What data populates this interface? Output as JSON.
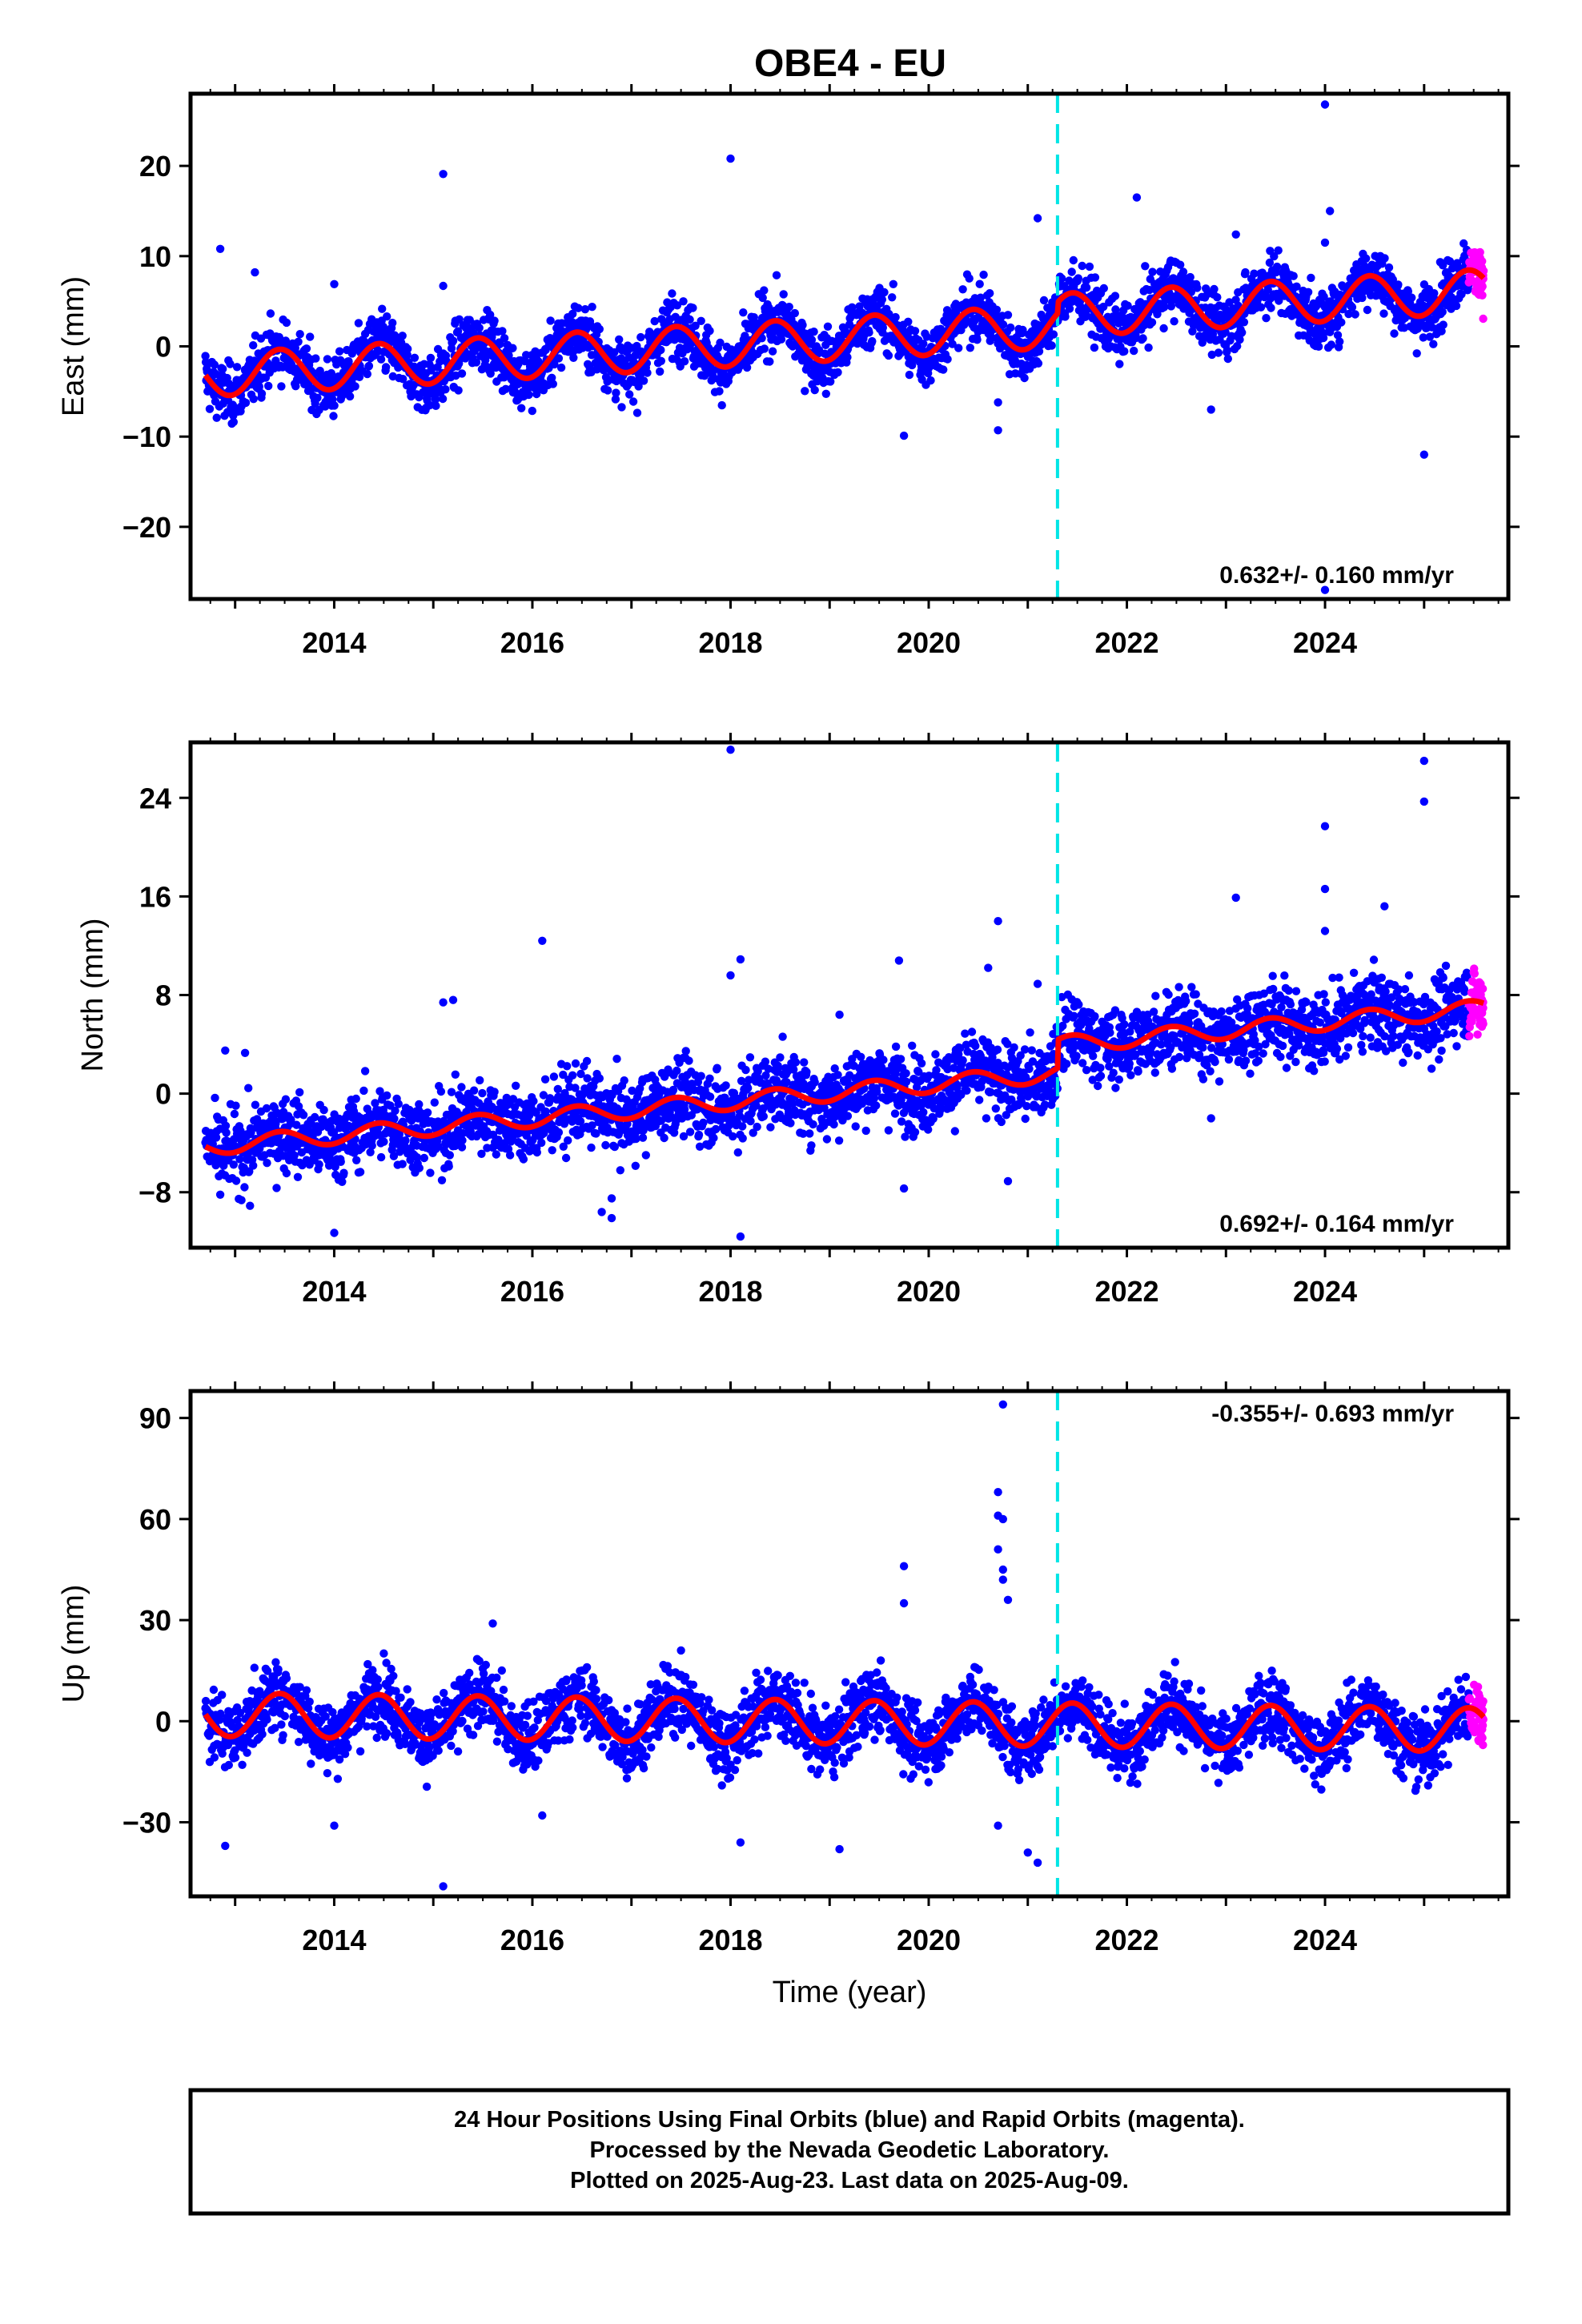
{
  "title": "OBE4 - EU",
  "caption": [
    "24 Hour Positions Using Final Orbits (blue) and Rapid Orbits (magenta).",
    "Processed by the Nevada Geodetic Laboratory.",
    "Plotted on 2025-Aug-23. Last data on 2025-Aug-09."
  ],
  "colors": {
    "final_orbits": "#0000ff",
    "rapid_orbits": "#ff00ff",
    "model_fit": "#ff0000",
    "equipment_change": "#00e5e5",
    "axes": "#000000"
  },
  "chart_data": [
    {
      "type": "scatter",
      "panel": "east",
      "title": "OBE4 - EU",
      "xlabel": "",
      "ylabel": "East (mm)",
      "xlim": [
        2012.55,
        2025.85
      ],
      "ylim": [
        -28,
        28
      ],
      "xticks": [
        2014,
        2016,
        2018,
        2020,
        2022,
        2024
      ],
      "yticks": [
        -20,
        -10,
        0,
        10,
        20
      ],
      "rate_text": "0.632+/- 0.160 mm/yr",
      "rate_position": "bottom-right",
      "trend": {
        "intercept_2012_7": -3.2,
        "rate": 0.632,
        "annual_amplitude": 2.4,
        "offset_2021_3": 1.2
      },
      "data_start": 2012.7,
      "data_end": 2025.6,
      "rapid_start": 2025.45,
      "scatter_sd": 1.6,
      "equipment_change_epoch": 2021.3,
      "outliers": [
        {
          "x": 2012.85,
          "y": 10.8
        },
        {
          "x": 2013.2,
          "y": 8.2
        },
        {
          "x": 2014.0,
          "y": 6.9
        },
        {
          "x": 2015.1,
          "y": 19.1
        },
        {
          "x": 2015.1,
          "y": 6.7
        },
        {
          "x": 2018.0,
          "y": 20.8
        },
        {
          "x": 2019.75,
          "y": -9.9
        },
        {
          "x": 2020.7,
          "y": -9.3
        },
        {
          "x": 2020.7,
          "y": -6.2
        },
        {
          "x": 2021.1,
          "y": 14.2
        },
        {
          "x": 2022.1,
          "y": 16.5
        },
        {
          "x": 2023.1,
          "y": 12.4
        },
        {
          "x": 2024.0,
          "y": 26.8
        },
        {
          "x": 2024.05,
          "y": 15.0
        },
        {
          "x": 2024.0,
          "y": 11.5
        },
        {
          "x": 2025.0,
          "y": -12.0
        },
        {
          "x": 2024.0,
          "y": -27.0
        },
        {
          "x": 2022.85,
          "y": -7.0
        }
      ]
    },
    {
      "type": "scatter",
      "panel": "north",
      "xlabel": "",
      "ylabel": "North (mm)",
      "xlim": [
        2012.55,
        2025.85
      ],
      "ylim": [
        -12.5,
        28.5
      ],
      "xticks": [
        2014,
        2016,
        2018,
        2020,
        2022,
        2024
      ],
      "yticks": [
        -8,
        0,
        8,
        16,
        24
      ],
      "rate_text": "0.692+/- 0.164 mm/yr",
      "rate_position": "bottom-right",
      "trend": {
        "intercept_2012_7": -4.3,
        "rate": 0.692,
        "annual_amplitude": 0.7,
        "offset_2021_3": 2.3
      },
      "data_start": 2012.7,
      "data_end": 2025.6,
      "rapid_start": 2025.45,
      "scatter_sd": 1.5,
      "equipment_change_epoch": 2021.3,
      "outliers": [
        {
          "x": 2012.9,
          "y": 3.5
        },
        {
          "x": 2013.1,
          "y": 3.3
        },
        {
          "x": 2012.85,
          "y": -8.2
        },
        {
          "x": 2013.15,
          "y": -9.1
        },
        {
          "x": 2014.0,
          "y": -11.3
        },
        {
          "x": 2015.1,
          "y": 7.4
        },
        {
          "x": 2015.2,
          "y": 7.6
        },
        {
          "x": 2016.1,
          "y": 12.4
        },
        {
          "x": 2016.7,
          "y": -9.6
        },
        {
          "x": 2016.8,
          "y": -8.5
        },
        {
          "x": 2016.8,
          "y": -10.1
        },
        {
          "x": 2018.0,
          "y": 27.9
        },
        {
          "x": 2018.0,
          "y": 9.6
        },
        {
          "x": 2018.1,
          "y": 10.9
        },
        {
          "x": 2018.1,
          "y": -11.6
        },
        {
          "x": 2019.1,
          "y": 6.4
        },
        {
          "x": 2019.7,
          "y": 10.8
        },
        {
          "x": 2019.75,
          "y": -7.7
        },
        {
          "x": 2020.7,
          "y": 14.0
        },
        {
          "x": 2020.6,
          "y": 10.2
        },
        {
          "x": 2020.8,
          "y": -7.1
        },
        {
          "x": 2021.1,
          "y": 8.9
        },
        {
          "x": 2023.1,
          "y": 15.9
        },
        {
          "x": 2024.0,
          "y": 21.7
        },
        {
          "x": 2024.0,
          "y": 16.6
        },
        {
          "x": 2024.0,
          "y": 13.2
        },
        {
          "x": 2025.0,
          "y": 27.0
        },
        {
          "x": 2025.0,
          "y": 23.7
        },
        {
          "x": 2024.6,
          "y": 15.2
        },
        {
          "x": 2022.85,
          "y": -2.0
        }
      ]
    },
    {
      "type": "scatter",
      "panel": "up",
      "xlabel": "Time (year)",
      "ylabel": "Up (mm)",
      "xlim": [
        2012.55,
        2025.85
      ],
      "ylim": [
        -52,
        98
      ],
      "xticks": [
        2014,
        2016,
        2018,
        2020,
        2022,
        2024
      ],
      "yticks": [
        -30,
        0,
        30,
        60,
        90
      ],
      "rate_text": "-0.355+/- 0.693 mm/yr",
      "rate_position": "top-right",
      "trend": {
        "intercept_2012_7": 2.0,
        "rate": -0.355,
        "annual_amplitude": 6.5,
        "offset_2021_3": 0.0
      },
      "data_start": 2012.7,
      "data_end": 2025.6,
      "rapid_start": 2025.45,
      "scatter_sd": 5.0,
      "equipment_change_epoch": 2021.3,
      "outliers": [
        {
          "x": 2012.9,
          "y": -37.0
        },
        {
          "x": 2014.0,
          "y": -31.0
        },
        {
          "x": 2015.1,
          "y": -49.0
        },
        {
          "x": 2016.1,
          "y": -28.0
        },
        {
          "x": 2018.1,
          "y": -36.0
        },
        {
          "x": 2019.1,
          "y": -38.0
        },
        {
          "x": 2019.75,
          "y": 46.0
        },
        {
          "x": 2019.75,
          "y": 35.0
        },
        {
          "x": 2020.75,
          "y": 94.0
        },
        {
          "x": 2020.7,
          "y": 68.0
        },
        {
          "x": 2020.7,
          "y": 61.0
        },
        {
          "x": 2020.75,
          "y": 60.0
        },
        {
          "x": 2020.7,
          "y": 51.0
        },
        {
          "x": 2020.75,
          "y": 45.0
        },
        {
          "x": 2020.75,
          "y": 42.0
        },
        {
          "x": 2020.8,
          "y": 36.0
        },
        {
          "x": 2020.7,
          "y": -31.0
        },
        {
          "x": 2021.1,
          "y": -42.0
        },
        {
          "x": 2021.0,
          "y": -39.0
        },
        {
          "x": 2015.6,
          "y": 29.0
        },
        {
          "x": 2017.5,
          "y": 21.0
        }
      ]
    }
  ]
}
